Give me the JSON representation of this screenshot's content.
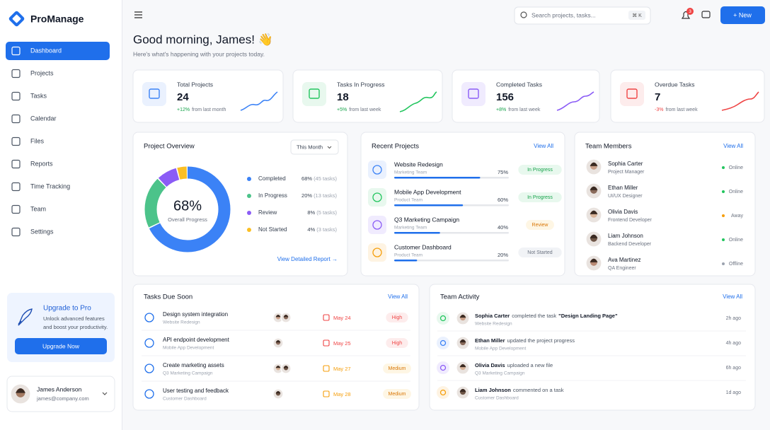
{
  "sidebar": {
    "brand": "ProManage",
    "nav": [
      "Dashboard",
      "Projects",
      "Tasks",
      "Calendar",
      "Files",
      "Reports",
      "Time Tracking",
      "Team",
      "Settings"
    ],
    "upgrade": {
      "title": "Upgrade to Pro",
      "description": [
        "Unlock advanced features",
        "and boost your productivity."
      ],
      "button": "Upgrade Now"
    },
    "user": {
      "name": "James Anderson",
      "email": "james@company.com"
    }
  },
  "topbar": {
    "search_placeholder": "Search projects, tasks...",
    "search_shortcut": "⌘ K",
    "notification_count": "3",
    "new_button": "+ New"
  },
  "greeting": {
    "title": "Good morning, James! 👋",
    "subtitle": "Here's what's happening with your projects today."
  },
  "stats": [
    {
      "title": "Total Projects",
      "value": "24",
      "change": "+12%",
      "period": "from last month"
    },
    {
      "title": "Tasks In Progress",
      "value": "18",
      "change": "+5%",
      "period": "from last week"
    },
    {
      "title": "Completed Tasks",
      "value": "156",
      "change": "+8%",
      "period": "from last week"
    },
    {
      "title": "Overdue Tasks",
      "value": "7",
      "change": "-3%",
      "period": "from last week"
    }
  ],
  "project_overview": {
    "title": "Project Overview",
    "filter": "This Month",
    "center_value": "68%",
    "center_label": "Overall Progress",
    "items": [
      {
        "name": "Completed",
        "value": 68,
        "value_label": "68%",
        "count": "(45 tasks)"
      },
      {
        "name": "In Progress",
        "value": 20,
        "value_label": "20%",
        "count": "(13 tasks)"
      },
      {
        "name": "Review",
        "value": 8,
        "value_label": "8%",
        "count": "(5 tasks)"
      },
      {
        "name": "Not Started",
        "value": 4,
        "value_label": "4%",
        "count": "(3 tasks)"
      }
    ],
    "link": "View Detailed Report →"
  },
  "recent_projects": {
    "title": "Recent Projects",
    "link": "View All",
    "items": [
      {
        "name": "Website Redesign",
        "team": "Marketing Team",
        "progress": 75,
        "progress_label": "75%",
        "status": "In Progress"
      },
      {
        "name": "Mobile App Development",
        "team": "Product Team",
        "progress": 60,
        "progress_label": "60%",
        "status": "In Progress"
      },
      {
        "name": "Q3 Marketing Campaign",
        "team": "Marketing Team",
        "progress": 40,
        "progress_label": "40%",
        "status": "Review"
      },
      {
        "name": "Customer Dashboard",
        "team": "Product Team",
        "progress": 20,
        "progress_label": "20%",
        "status": "Not Started"
      }
    ]
  },
  "team_members": {
    "title": "Team Members",
    "link": "View All",
    "members": [
      {
        "name": "Sophia Carter",
        "role": "Project Manager",
        "status": "Online"
      },
      {
        "name": "Ethan Miller",
        "role": "UI/UX Designer",
        "status": "Online"
      },
      {
        "name": "Olivia Davis",
        "role": "Frontend Developer",
        "status": "Away"
      },
      {
        "name": "Liam Johnson",
        "role": "Backend Developer",
        "status": "Online"
      },
      {
        "name": "Ava Martinez",
        "role": "QA Engineer",
        "status": "Offline"
      }
    ]
  },
  "tasks_due": {
    "title": "Tasks Due Soon",
    "link": "View All",
    "items": [
      {
        "task": "Design system integration",
        "project": "Website Redesign",
        "date": "May 24",
        "priority": "High"
      },
      {
        "task": "API endpoint development",
        "project": "Mobile App Development",
        "date": "May 25",
        "priority": "High"
      },
      {
        "task": "Create marketing assets",
        "project": "Q3 Marketing Campaign",
        "date": "May 27",
        "priority": "Medium"
      },
      {
        "task": "User testing and feedback",
        "project": "Customer Dashboard",
        "date": "May 28",
        "priority": "Medium"
      }
    ]
  },
  "team_activity": {
    "title": "Team Activity",
    "link": "View All",
    "items": [
      {
        "actor": "Sophia Carter",
        "action": "completed the task",
        "target": "\"Design Landing Page\"",
        "context": "Website Redesign",
        "time": "2h ago"
      },
      {
        "actor": "Ethan Miller",
        "action": "updated the project progress",
        "context": "Mobile App Development",
        "time": "4h ago"
      },
      {
        "actor": "Olivia Davis",
        "action": "uploaded a new file",
        "context": "Q3 Marketing Campaign",
        "time": "6h ago"
      },
      {
        "actor": "Liam Johnson",
        "action": "commented on a task",
        "context": "Customer Dashboard",
        "time": "1d ago"
      }
    ]
  }
}
